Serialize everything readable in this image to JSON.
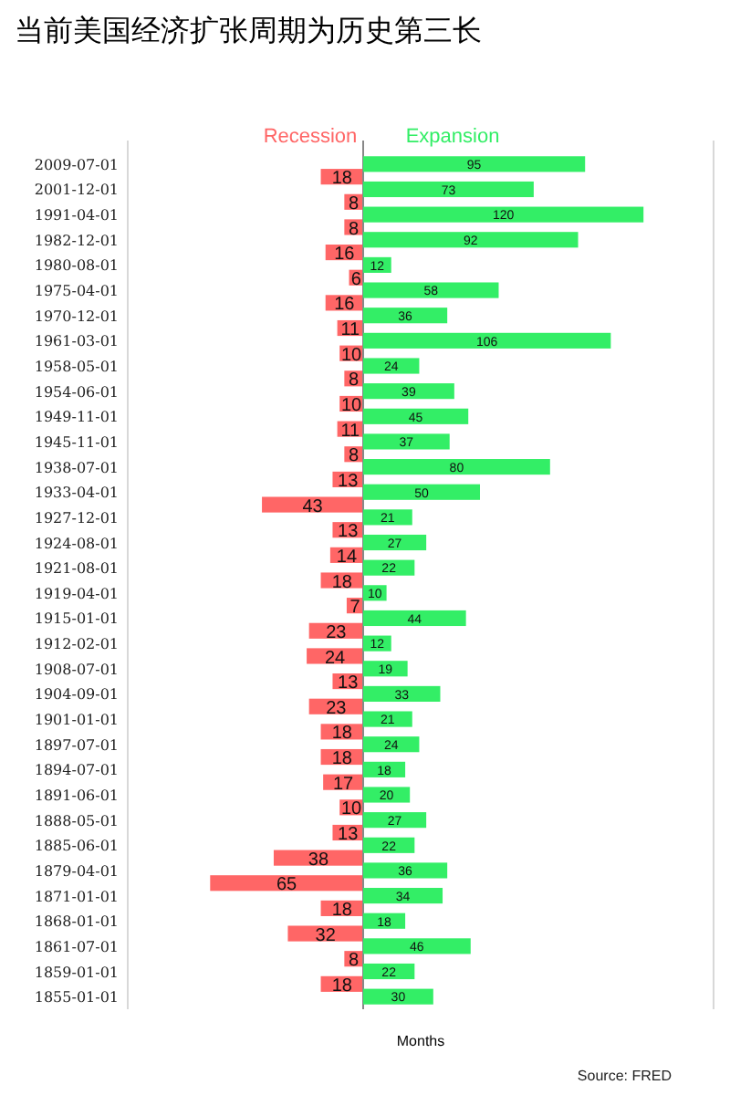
{
  "chart_data": [
    {
      "type": "bar",
      "orientation": "horizontal",
      "title": "当前美国经济扩张周期为历史第三长",
      "categories": [
        "2009-07-01",
        "2001-12-01",
        "1991-04-01",
        "1982-12-01",
        "1980-08-01",
        "1975-04-01",
        "1970-12-01",
        "1961-03-01",
        "1958-05-01",
        "1954-06-01",
        "1949-11-01",
        "1945-11-01",
        "1938-07-01",
        "1933-04-01",
        "1927-12-01",
        "1924-08-01",
        "1921-08-01",
        "1919-04-01",
        "1915-01-01",
        "1912-02-01",
        "1908-07-01",
        "1904-09-01",
        "1901-01-01",
        "1897-07-01",
        "1894-07-01",
        "1891-06-01",
        "1888-05-01",
        "1885-06-01",
        "1879-04-01",
        "1871-01-01",
        "1868-01-01",
        "1861-07-01",
        "1859-01-01",
        "1855-01-01"
      ],
      "series": [
        {
          "name": "Recession",
          "color": "#ff6666",
          "values": [
            18,
            8,
            8,
            16,
            6,
            16,
            11,
            10,
            8,
            10,
            11,
            8,
            13,
            43,
            13,
            14,
            18,
            7,
            23,
            24,
            13,
            23,
            18,
            18,
            17,
            10,
            13,
            38,
            65,
            18,
            32,
            8,
            18,
            null
          ]
        }
      ],
      "data_labels": true,
      "xlim": [
        100,
        0
      ],
      "legend": "top"
    },
    {
      "type": "bar",
      "orientation": "horizontal",
      "xlabel": "Months",
      "annotations": [
        "Source: FRED"
      ],
      "categories": [
        "2009-07-01",
        "2001-12-01",
        "1991-04-01",
        "1982-12-01",
        "1980-08-01",
        "1975-04-01",
        "1970-12-01",
        "1961-03-01",
        "1958-05-01",
        "1954-06-01",
        "1949-11-01",
        "1945-11-01",
        "1938-07-01",
        "1933-04-01",
        "1927-12-01",
        "1924-08-01",
        "1921-08-01",
        "1919-04-01",
        "1915-01-01",
        "1912-02-01",
        "1908-07-01",
        "1904-09-01",
        "1901-01-01",
        "1897-07-01",
        "1894-07-01",
        "1891-06-01",
        "1888-05-01",
        "1885-06-01",
        "1879-04-01",
        "1871-01-01",
        "1868-01-01",
        "1861-07-01",
        "1859-01-01",
        "1855-01-01"
      ],
      "series": [
        {
          "name": "Expansion",
          "color": "#33ee66",
          "values": [
            95,
            73,
            120,
            92,
            12,
            58,
            36,
            106,
            24,
            39,
            45,
            37,
            80,
            50,
            21,
            27,
            22,
            10,
            44,
            12,
            19,
            33,
            21,
            24,
            18,
            20,
            27,
            22,
            36,
            34,
            18,
            46,
            22,
            30
          ]
        }
      ],
      "data_labels": true,
      "xlim": [
        0,
        150
      ],
      "legend": "top",
      "tick_labels": false
    }
  ]
}
